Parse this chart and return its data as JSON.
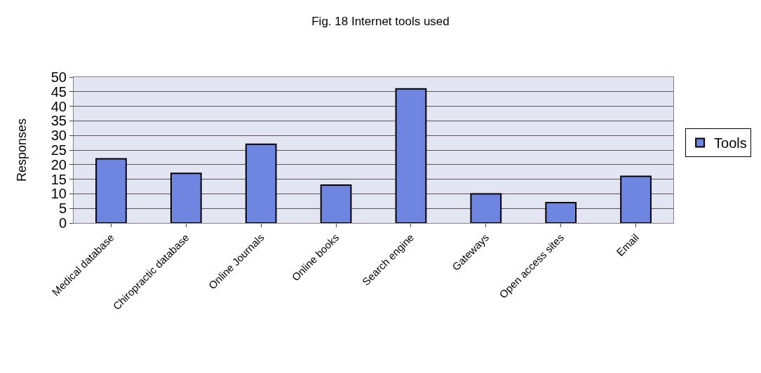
{
  "chart_data": {
    "type": "bar",
    "title": "Fig. 18 Internet tools used",
    "ylabel": "Responses",
    "categories": [
      "Medical database",
      "Chiropractic database",
      "Online Journals",
      "Online books",
      "Search engine",
      "Gateways",
      "Open access sites",
      "Email"
    ],
    "series": [
      {
        "name": "Tools",
        "color": "#6f86e0",
        "values": [
          22,
          17,
          27,
          13,
          46,
          10,
          7,
          16
        ]
      }
    ],
    "ylim": [
      0,
      50
    ],
    "yticks": [
      0,
      5,
      10,
      15,
      20,
      25,
      30,
      35,
      40,
      45,
      50
    ],
    "grid": "y",
    "legend": "right"
  }
}
